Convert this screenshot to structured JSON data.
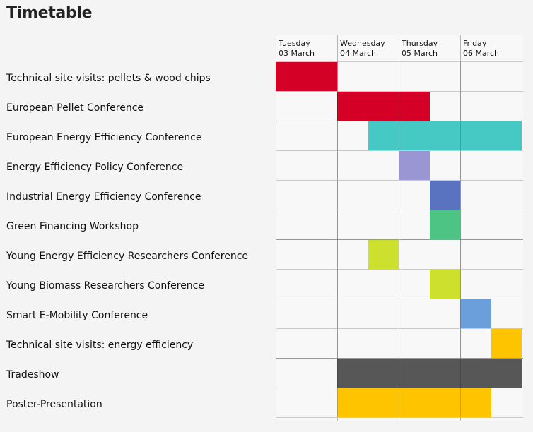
{
  "title": "Timetable",
  "days": [
    {
      "weekday": "Tuesday",
      "date": "03 March"
    },
    {
      "weekday": "Wednesday",
      "date": "04 March"
    },
    {
      "weekday": "Thursday",
      "date": "05 March"
    },
    {
      "weekday": "Friday",
      "date": "06 March"
    }
  ],
  "rows": [
    {
      "label": "Technical site visits: pellets & wood chips",
      "start_day": 0,
      "end_day": 1,
      "color": "#d40025"
    },
    {
      "label": "European Pellet Conference",
      "start_day": 1,
      "end_day": 2.5,
      "color": "#d40025"
    },
    {
      "label": "European Energy Efficiency Conference",
      "start_day": 1.5,
      "end_day": 4,
      "color": "#46c8c4"
    },
    {
      "label": "Energy Efficiency Policy Conference",
      "start_day": 2,
      "end_day": 2.5,
      "color": "#9a96d4"
    },
    {
      "label": "Industrial Energy Efficiency Conference",
      "start_day": 2.5,
      "end_day": 3,
      "color": "#5a73c0"
    },
    {
      "label": "Green Financing Workshop",
      "start_day": 2.5,
      "end_day": 3,
      "color": "#4dc483"
    },
    {
      "label": "Young Energy Efficiency Researchers Conference",
      "start_day": 1.5,
      "end_day": 2,
      "color": "#cde02e"
    },
    {
      "label": "Young Biomass Researchers Conference",
      "start_day": 2.5,
      "end_day": 3,
      "color": "#cde02e"
    },
    {
      "label": "Smart E-Mobility Conference",
      "start_day": 3,
      "end_day": 3.5,
      "color": "#6a9fdc"
    },
    {
      "label": "Technical site visits: energy efficiency",
      "start_day": 3.5,
      "end_day": 4,
      "color": "#fec400"
    },
    {
      "label": "Tradeshow",
      "start_day": 1,
      "end_day": 4,
      "color": "#575757"
    },
    {
      "label": "Poster-Presentation",
      "start_day": 1,
      "end_day": 3.5,
      "color": "#fec400"
    }
  ]
}
